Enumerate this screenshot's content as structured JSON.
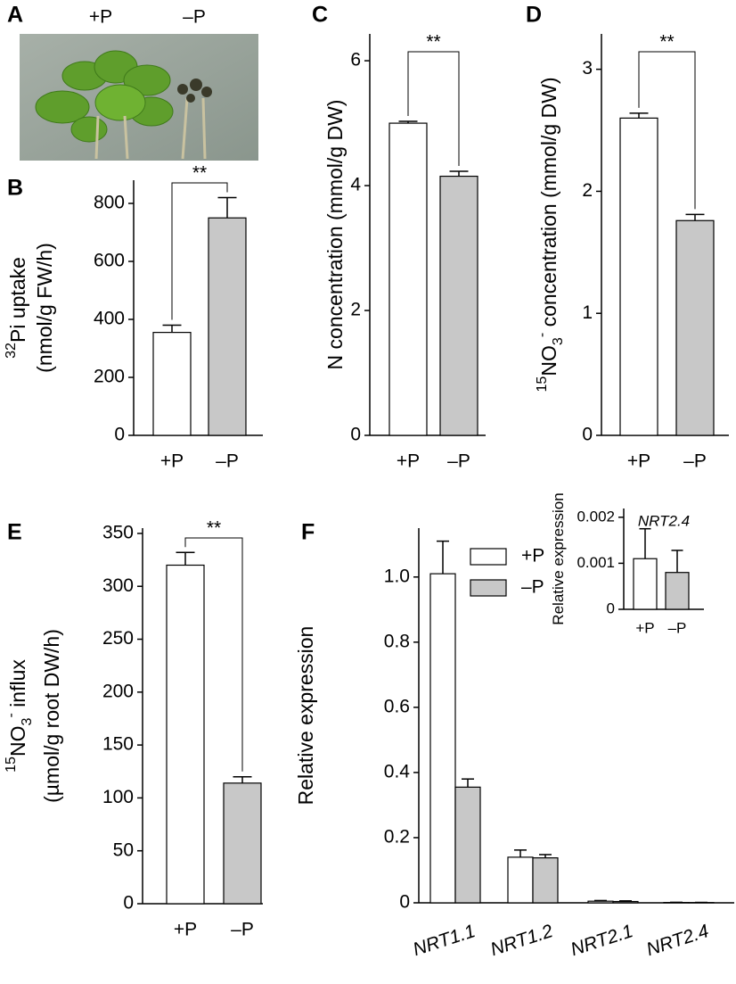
{
  "photo_panel": {
    "panel": "A",
    "labels": [
      "+P",
      "–P"
    ]
  },
  "chart_data": [
    {
      "type": "bar",
      "panel": "B",
      "ylabel": [
        [
          {
            "text": "32",
            "style": "sup"
          },
          {
            "text": "Pi uptake"
          }
        ],
        [
          {
            "text": "(nmol/g FW/h)"
          }
        ]
      ],
      "categories": [
        "+P",
        "–P"
      ],
      "values": [
        355,
        750
      ],
      "errors": [
        25,
        70
      ],
      "colors": [
        "#ffffff",
        "#c8c8c8"
      ],
      "ylim": [
        0,
        880
      ],
      "yticks": [
        0,
        200,
        400,
        600,
        800
      ],
      "annotation": "**"
    },
    {
      "type": "bar",
      "panel": "C",
      "ylabel": [
        [
          {
            "text": "N concentration (mmol/g DW)"
          }
        ]
      ],
      "categories": [
        "+P",
        "–P"
      ],
      "values": [
        5.0,
        4.15
      ],
      "errors": [
        0.03,
        0.08
      ],
      "colors": [
        "#ffffff",
        "#c8c8c8"
      ],
      "ylim": [
        0,
        6.43
      ],
      "yticks": [
        0,
        2,
        4,
        6
      ],
      "annotation": "**"
    },
    {
      "type": "bar",
      "panel": "D",
      "ylabel": [
        [
          {
            "text": "15",
            "style": "sup"
          },
          {
            "text": "NO"
          },
          {
            "text": "3",
            "style": "sub"
          },
          {
            "text": "-",
            "style": "sup"
          },
          {
            "text": " concentration (mmol/g DW)"
          }
        ]
      ],
      "categories": [
        "+P",
        "–P"
      ],
      "values": [
        2.6,
        1.76
      ],
      "errors": [
        0.04,
        0.05
      ],
      "colors": [
        "#ffffff",
        "#c8c8c8"
      ],
      "ylim": [
        0,
        3.29
      ],
      "yticks": [
        0,
        1,
        2,
        3
      ],
      "annotation": "**"
    },
    {
      "type": "bar",
      "panel": "E",
      "ylabel": [
        [
          {
            "text": "15",
            "style": "sup"
          },
          {
            "text": "NO"
          },
          {
            "text": "3",
            "style": "sub"
          },
          {
            "text": "-",
            "style": "sup"
          },
          {
            "text": " influx"
          }
        ],
        [
          {
            "text": "(µmol/g root DW/h)"
          }
        ]
      ],
      "categories": [
        "+P",
        "–P"
      ],
      "values": [
        320,
        114
      ],
      "errors": [
        12,
        6
      ],
      "colors": [
        "#ffffff",
        "#c8c8c8"
      ],
      "ylim": [
        0,
        355
      ],
      "yticks": [
        0,
        50,
        100,
        150,
        200,
        250,
        300,
        350
      ],
      "annotation": "**"
    },
    {
      "type": "grouped_bar",
      "panel": "F",
      "ylabel": [
        [
          {
            "text": "Relative expression"
          }
        ]
      ],
      "categories": [
        "NRT1.1",
        "NRT1.2",
        "NRT2.1",
        "NRT2.4"
      ],
      "series": [
        {
          "name": "+P",
          "color": "#ffffff",
          "values": [
            1.01,
            0.14,
            0.005,
            0.001
          ],
          "errors": [
            0.1,
            0.022,
            0.002,
            0.0006
          ]
        },
        {
          "name": "–P",
          "color": "#c8c8c8",
          "values": [
            0.355,
            0.138,
            0.004,
            0.0008
          ],
          "errors": [
            0.025,
            0.01,
            0.002,
            0.0005
          ]
        }
      ],
      "ylim": [
        0,
        1.15
      ],
      "yticks": [
        0,
        0.2,
        0.4,
        0.6,
        0.8,
        {
          "value": 1,
          "label": "1.0"
        }
      ]
    },
    {
      "type": "bar",
      "title": "NRT2.4",
      "ylabel": [
        [
          {
            "text": "Relative expression"
          }
        ]
      ],
      "categories": [
        "+P",
        "–P"
      ],
      "values": [
        0.0011,
        0.0008
      ],
      "errors": [
        0.00065,
        0.00048
      ],
      "colors": [
        "#ffffff",
        "#c8c8c8"
      ],
      "ylim": [
        0,
        0.00219
      ],
      "yticks": [
        0,
        0.001,
        0.002
      ]
    }
  ]
}
